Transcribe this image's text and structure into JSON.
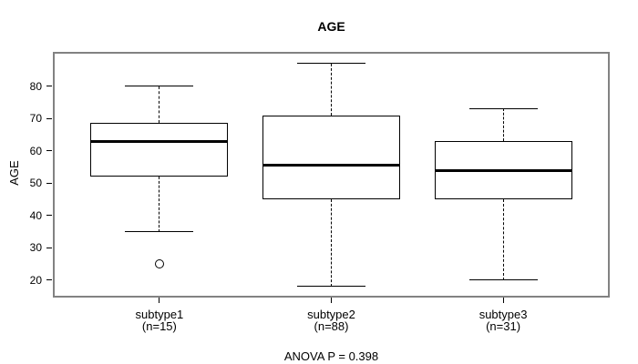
{
  "window": {
    "background": "#ffffff"
  },
  "chart_data": {
    "type": "boxplot",
    "title": "AGE",
    "ylabel": "AGE",
    "xlabel": "",
    "annotation": "ANOVA P = 0.398",
    "yticks": [
      20,
      30,
      40,
      50,
      60,
      70,
      80
    ],
    "ylim": [
      14.9,
      90.3
    ],
    "grid": false,
    "legend": false,
    "frame_color": "#828282",
    "line_color": "#000000",
    "background_color": "#ffffff",
    "groups": [
      {
        "label": "subtype1",
        "sublabel": "(n=15)",
        "n": 15,
        "whisker_low": 35,
        "q1": 52,
        "median": 63,
        "q3": 68.5,
        "whisker_high": 80,
        "outliers": [
          25
        ]
      },
      {
        "label": "subtype2",
        "sublabel": "(n=88)",
        "n": 88,
        "whisker_low": 18,
        "q1": 45,
        "median": 55.5,
        "q3": 71,
        "whisker_high": 87,
        "outliers": []
      },
      {
        "label": "subtype3",
        "sublabel": "(n=31)",
        "n": 31,
        "whisker_low": 20,
        "q1": 45,
        "median": 54,
        "q3": 63,
        "whisker_high": 73,
        "outliers": []
      }
    ]
  }
}
